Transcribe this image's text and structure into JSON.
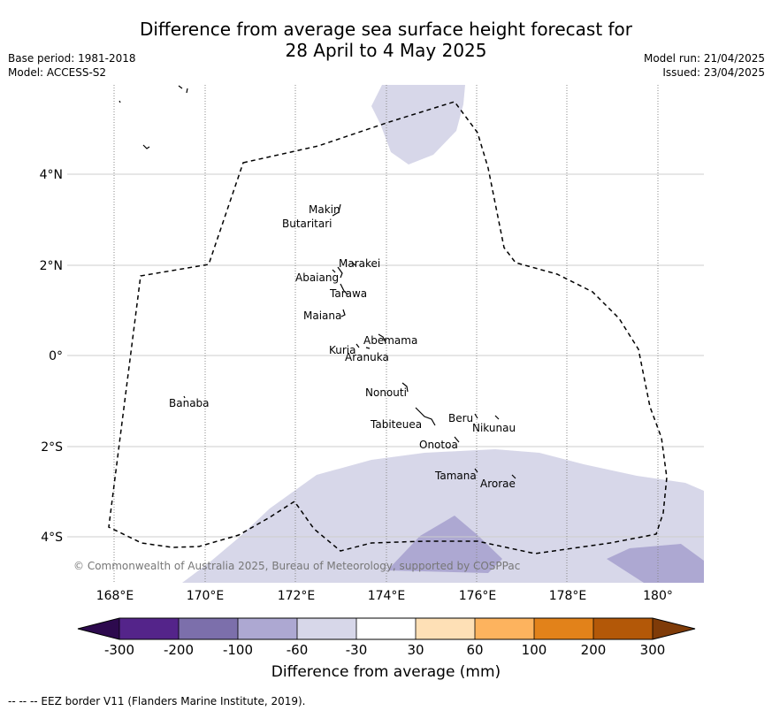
{
  "title_line1": "Difference from average sea surface height forecast for",
  "title_line2": "28 April to 4 May 2025",
  "meta_left": {
    "base_period": "Base period: 1981-2018",
    "model": "Model: ACCESS-S2"
  },
  "meta_right": {
    "model_run": "Model run: 21/04/2025",
    "issued": "Issued: 23/04/2025"
  },
  "map": {
    "lon_range": [
      167,
      181
    ],
    "lat_range": [
      -5,
      6
    ],
    "x_ticks": [
      "168°E",
      "170°E",
      "172°E",
      "174°E",
      "176°E",
      "178°E",
      "180°"
    ],
    "y_ticks": [
      "4°N",
      "2°N",
      "0°",
      "2°S",
      "4°S"
    ],
    "places": [
      {
        "name": "Makin",
        "lon": 172.3,
        "lat": 3.2
      },
      {
        "name": "Butaritari",
        "lon": 171.7,
        "lat": 2.9
      },
      {
        "name": "Marakei",
        "lon": 173.4,
        "lat": 2.05
      },
      {
        "name": "Abaiang",
        "lon": 172.4,
        "lat": 1.75
      },
      {
        "name": "Tarawa",
        "lon": 173.2,
        "lat": 1.38
      },
      {
        "name": "Maiana",
        "lon": 172.6,
        "lat": 0.9
      },
      {
        "name": "Abemama",
        "lon": 174.1,
        "lat": 0.35
      },
      {
        "name": "Kuria",
        "lon": 173.0,
        "lat": 0.12
      },
      {
        "name": "Aranuka",
        "lon": 173.5,
        "lat": -0.02
      },
      {
        "name": "Nonouti",
        "lon": 174.0,
        "lat": -0.8
      },
      {
        "name": "Banaba",
        "lon": 169.6,
        "lat": -1.05
      },
      {
        "name": "Beru",
        "lon": 175.6,
        "lat": -1.38
      },
      {
        "name": "Tabiteuea",
        "lon": 174.2,
        "lat": -1.52
      },
      {
        "name": "Nikunau",
        "lon": 176.35,
        "lat": -1.6
      },
      {
        "name": "Onotoa",
        "lon": 175.1,
        "lat": -1.95
      },
      {
        "name": "Tamana",
        "lon": 175.5,
        "lat": -2.65
      },
      {
        "name": "Arorae",
        "lon": 176.45,
        "lat": -2.82
      }
    ],
    "copyright": "© Commonwealth of Australia 2025, Bureau of Meteorology, supported by COSPPac"
  },
  "colorbar": {
    "tick_labels": [
      "-300",
      "-200",
      "-100",
      "-60",
      "-30",
      "30",
      "60",
      "100",
      "200",
      "300"
    ],
    "colors": [
      "#2d0a4e",
      "#54248a",
      "#7c6fab",
      "#ada8d2",
      "#d7d7e9",
      "#ffffff",
      "#fee0b6",
      "#fdb35e",
      "#e2821a",
      "#b35808",
      "#7f3b08"
    ],
    "label": "Difference from average (mm)"
  },
  "footer": "--  --  -- EEZ border V11 (Flanders Marine Institute, 2019)."
}
